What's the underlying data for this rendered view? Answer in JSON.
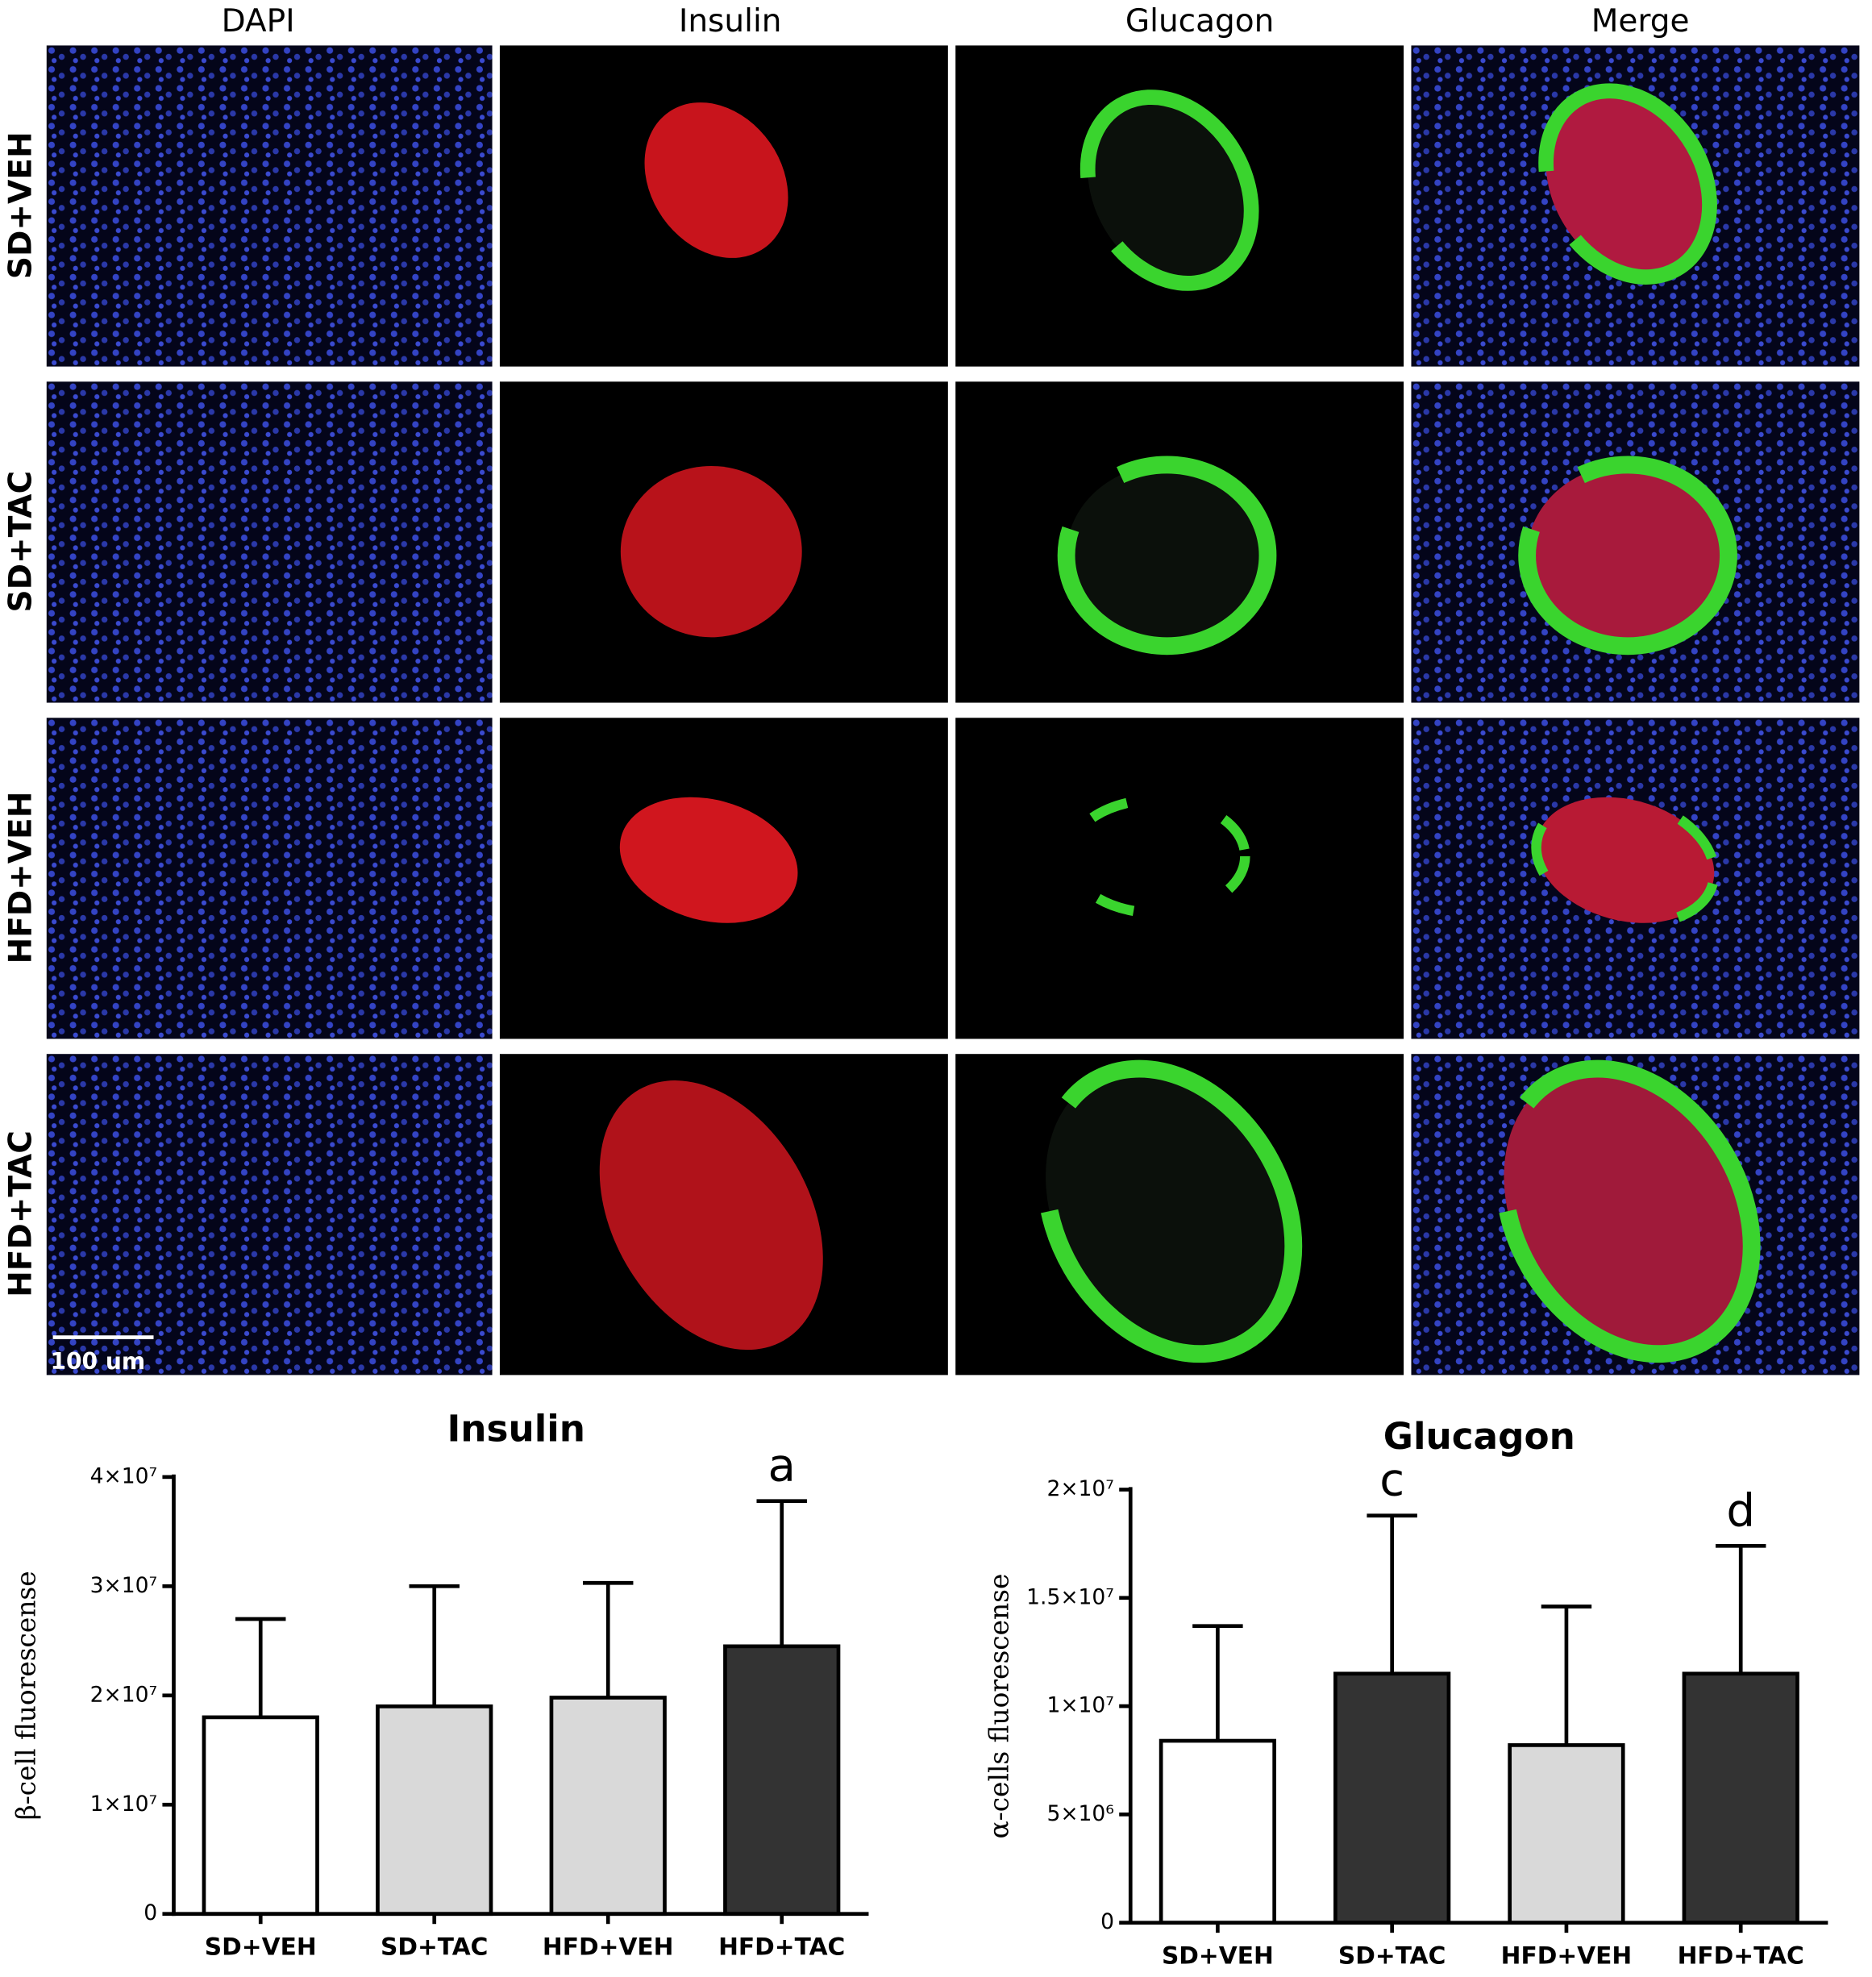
{
  "panel_columns": [
    "DAPI",
    "Insulin",
    "Glucagon",
    "Merge"
  ],
  "panel_rows": [
    "SD+VEH",
    "SD+TAC",
    "HFD+VEH",
    "HFD+TAC"
  ],
  "scale_bar": "100 um",
  "chart_data": [
    {
      "type": "bar",
      "title": "Insulin",
      "y_label": "β-cell fluorescense",
      "categories": [
        "SD+VEH",
        "SD+TAC",
        "HFD+VEH",
        "HFD+TAC"
      ],
      "values": [
        18000000,
        19000000,
        19800000,
        24500000
      ],
      "errors": [
        9000000,
        11000000,
        10500000,
        13300000
      ],
      "colors": [
        "#ffffff",
        "#d9d9d9",
        "#d9d9d9",
        "#333333"
      ],
      "ylim": [
        0,
        40000000
      ],
      "yticks": [
        0,
        {
          "value": 10000000,
          "label": "1×10⁷"
        },
        {
          "value": 20000000,
          "label": "2×10⁷"
        },
        {
          "value": 30000000,
          "label": "3×10⁷"
        },
        {
          "value": 40000000,
          "label": "4×10⁷"
        }
      ],
      "annotations": [
        {
          "text": "a",
          "category": "HFD+TAC"
        }
      ]
    },
    {
      "type": "bar",
      "title": "Glucagon",
      "y_label": "α-cells fluorescense",
      "categories": [
        "SD+VEH",
        "SD+TAC",
        "HFD+VEH",
        "HFD+TAC"
      ],
      "values": [
        8400000,
        11500000,
        8200000,
        11500000
      ],
      "errors": [
        5300000,
        7300000,
        6400000,
        5900000
      ],
      "colors": [
        "#ffffff",
        "#333333",
        "#d9d9d9",
        "#333333"
      ],
      "ylim": [
        0,
        20000000
      ],
      "yticks": [
        0,
        {
          "value": 5000000,
          "label": "5×10⁶"
        },
        {
          "value": 10000000,
          "label": "1×10⁷"
        },
        {
          "value": 15000000,
          "label": "1.5×10⁷"
        },
        {
          "value": 20000000,
          "label": "2×10⁷"
        }
      ],
      "annotations": [
        {
          "text": "c",
          "category": "SD+TAC"
        },
        {
          "text": "d",
          "category": "HFD+TAC"
        }
      ]
    }
  ]
}
